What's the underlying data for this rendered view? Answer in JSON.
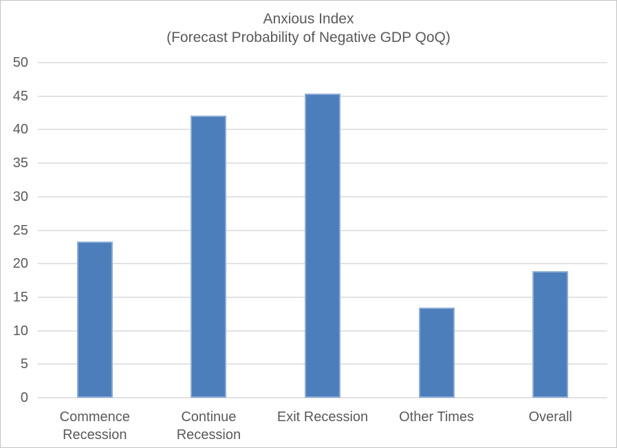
{
  "chart_data": {
    "type": "bar",
    "title": "Anxious Index",
    "subtitle": "(Forecast Probability of Negative GDP QoQ)",
    "categories": [
      "Commence Recession",
      "Continue Recession",
      "Exit Recession",
      "Other Times",
      "Overall"
    ],
    "values": [
      23.3,
      42.1,
      45.4,
      13.5,
      18.9
    ],
    "xlabel": "",
    "ylabel": "",
    "ylim": [
      0,
      50
    ],
    "ytick_step": 5,
    "ytick_labels": [
      "0",
      "5",
      "10",
      "15",
      "20",
      "25",
      "30",
      "35",
      "40",
      "45",
      "50"
    ],
    "grid": true,
    "legend": "none",
    "colors": {
      "bar_fill": "#4d7ebc",
      "bar_border": "#8fadd6",
      "gridline": "#e2e2e2",
      "text": "#595959",
      "frame_border": "#c3c3c3",
      "background": "#ffffff"
    }
  }
}
